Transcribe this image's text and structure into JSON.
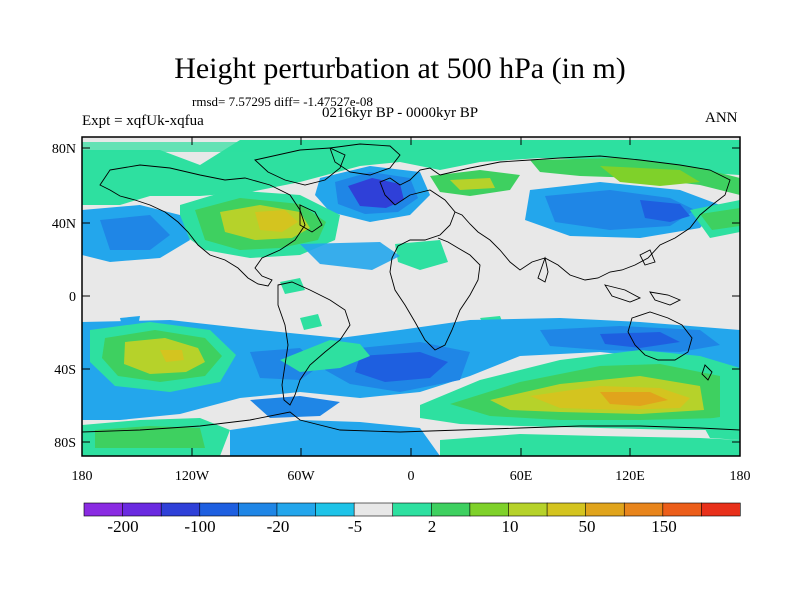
{
  "title": "Height perturbation at 500 hPa (in m)",
  "stats": "rmsd= 7.57295 diff= -1.47527e-08",
  "left_label": "Expt = xqfUk-xqfua",
  "center_label": "0216kyr BP - 0000kyr BP",
  "right_label": "ANN",
  "lat_labels": [
    "80N",
    "40N",
    "0",
    "40S",
    "80S"
  ],
  "lon_labels": [
    "180",
    "120W",
    "60W",
    "0",
    "60E",
    "120E",
    "180"
  ],
  "colorbar": {
    "colors": [
      "#8a2be2",
      "#6a2ae0",
      "#2f40d8",
      "#1e5fe0",
      "#1f86e6",
      "#23a6ec",
      "#1ec3e8",
      "#e8e8e8",
      "#2ee0a0",
      "#3ed060",
      "#7fd12a",
      "#b6d22a",
      "#d4c41f",
      "#e0a41c",
      "#e8851c",
      "#ec5e1a",
      "#e8301a"
    ],
    "labels": [
      "-200",
      "-100",
      "-20",
      "-5",
      "2",
      "10",
      "50",
      "150"
    ]
  },
  "palette": {
    "land_outline": "#000000",
    "neutral": "#e8e8e8",
    "deep_blue": "#2f40d8",
    "blue": "#1f86e6",
    "cyan": "#23a6ec",
    "teal_green": "#2ee0a0",
    "green": "#3ed060",
    "yellow_green": "#b6d22a",
    "gold": "#d4c41f"
  }
}
